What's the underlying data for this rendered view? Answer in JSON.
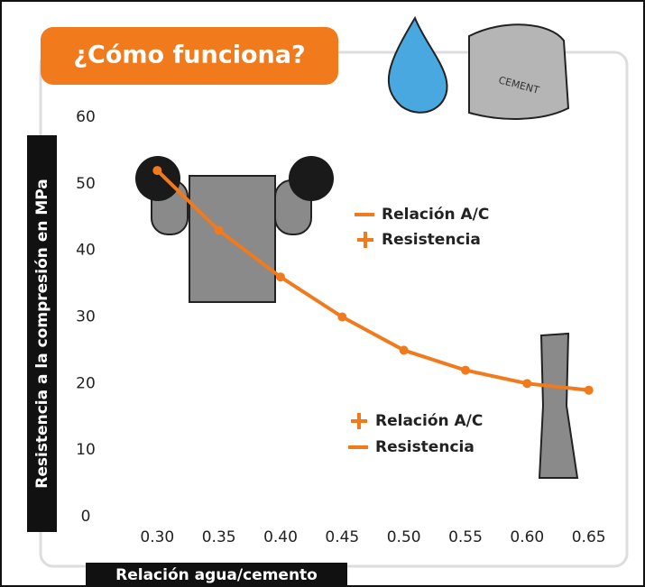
{
  "chart_data": {
    "type": "line",
    "title": "¿Cómo funciona?",
    "y_label": "Resistencia a la compresión en MPa",
    "x_label": "Relación agua/cemento",
    "x": [
      0.3,
      0.35,
      0.4,
      0.45,
      0.5,
      0.55,
      0.6,
      0.65
    ],
    "values": [
      52,
      43,
      36,
      30,
      25,
      22,
      20,
      19
    ],
    "color": "#f07a1c",
    "xlim": [
      0.28,
      0.67
    ],
    "ylim": [
      0,
      60
    ],
    "xticks": [
      {
        "value": 0.3,
        "label": "0.30"
      },
      0.35,
      {
        "value": 0.4,
        "label": "0.40"
      },
      0.45,
      {
        "value": 0.5,
        "label": "0.50"
      },
      0.55,
      {
        "value": 0.6,
        "label": "0.60"
      },
      0.65
    ],
    "yticks": [
      0,
      10,
      20,
      30,
      40,
      50,
      60
    ],
    "legend_entries": [
      "Relación A/C",
      "Resistencia",
      "Relación A/C",
      "Resistencia"
    ],
    "illustration_text": "CEMENT"
  }
}
